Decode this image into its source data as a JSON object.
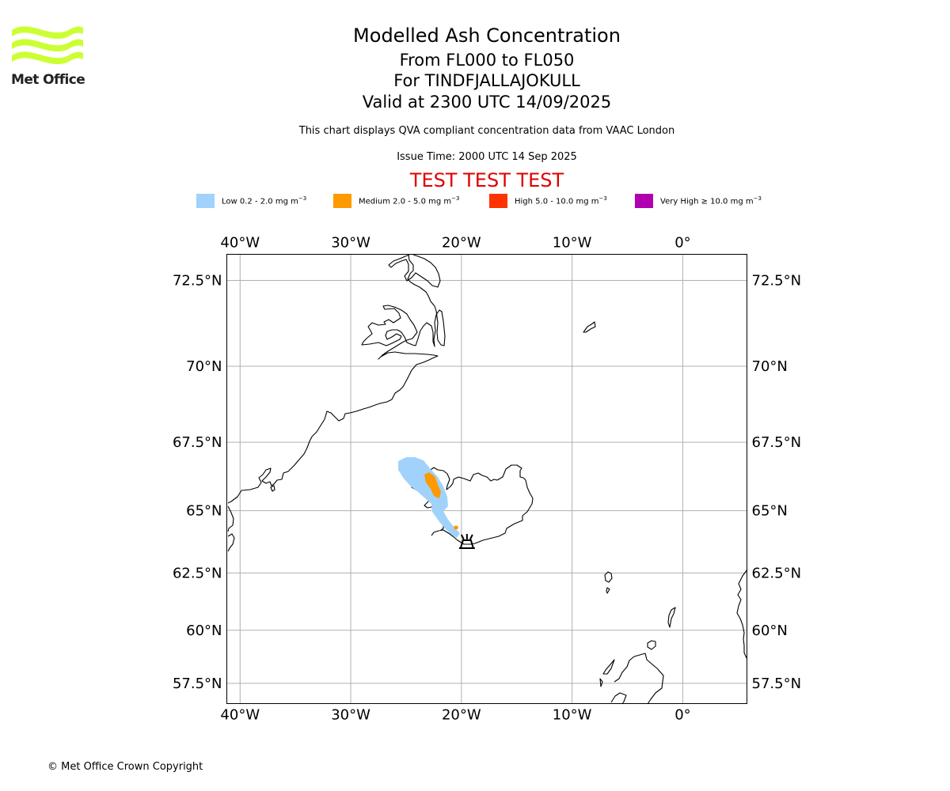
{
  "brand": {
    "name": "Met Office",
    "color": "#ccff33"
  },
  "header": {
    "title": "Modelled Ash Concentration",
    "levels": "From FL000 to FL050",
    "volcano": "For TINDFJALLAJOKULL",
    "valid": "Valid at 2300 UTC 14/09/2025",
    "description": "This chart displays QVA compliant concentration data from VAAC London",
    "issue_time": "Issue Time: 2000 UTC 14 Sep 2025",
    "test_banner": "TEST TEST TEST",
    "test_color": "#e00000"
  },
  "legend": [
    {
      "label": "Low 0.2 - 2.0 mg m",
      "exp": "−3",
      "color": "#a0d2fc"
    },
    {
      "label": "Medium 2.0 - 5.0 mg m",
      "exp": "−3",
      "color": "#ff9900"
    },
    {
      "label": "High 5.0 - 10.0 mg m",
      "exp": "−3",
      "color": "#ff3300"
    },
    {
      "label": "Very High  ≥  10.0 mg m",
      "exp": "−3",
      "color": "#b000b0"
    }
  ],
  "map": {
    "projection": "mercator",
    "lon_range": [
      -41.2,
      5.8
    ],
    "lat_range": [
      56.5,
      73.2
    ],
    "lon_ticks": [
      {
        "value": -40,
        "label": "40°W"
      },
      {
        "value": -30,
        "label": "30°W"
      },
      {
        "value": -20,
        "label": "20°W"
      },
      {
        "value": -10,
        "label": "10°W"
      },
      {
        "value": 0,
        "label": "0°"
      }
    ],
    "lat_ticks": [
      {
        "value": 72.5,
        "label": "72.5°N"
      },
      {
        "value": 70,
        "label": "70°N"
      },
      {
        "value": 67.5,
        "label": "67.5°N"
      },
      {
        "value": 65,
        "label": "65°N"
      },
      {
        "value": 62.5,
        "label": "62.5°N"
      },
      {
        "value": 60,
        "label": "60°N"
      },
      {
        "value": 57.5,
        "label": "57.5°N"
      }
    ],
    "grid": true,
    "volcano_marker": {
      "lon": -19.5,
      "lat": 63.78,
      "icon": "volcano-icon"
    }
  },
  "footer": {
    "copyright": "© Met Office Crown Copyright"
  }
}
